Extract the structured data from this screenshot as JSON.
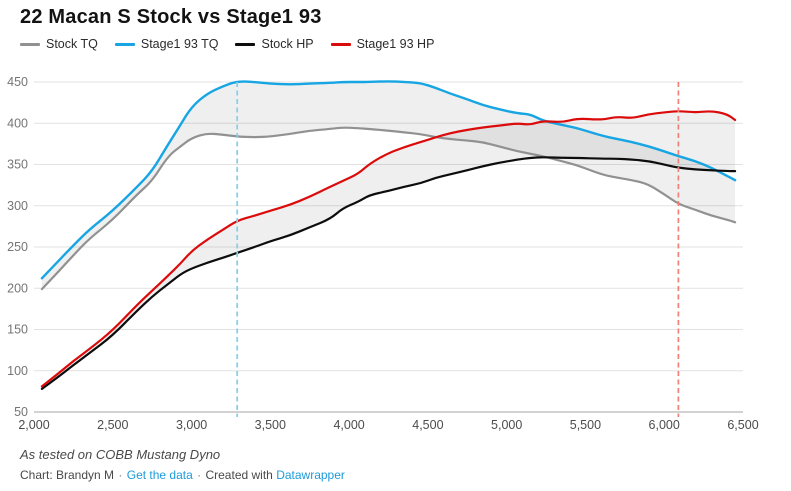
{
  "title": "22 Macan S Stock vs Stage1 93",
  "legend": [
    {
      "label": "Stock TQ",
      "color": "#919191"
    },
    {
      "label": "Stage1 93 TQ",
      "color": "#17a5e3"
    },
    {
      "label": "Stock HP",
      "color": "#0d0d0d"
    },
    {
      "label": "Stage1 93 HP",
      "color": "#dc0b0b"
    }
  ],
  "footer": {
    "note": "As tested on COBB Mustang Dyno",
    "byline": "Chart: Brandyn M",
    "dot": "·",
    "get_data_link": "Get the data",
    "created_with": "Created with",
    "datawrapper_link": "Datawrapper"
  },
  "colors": {
    "grid": "#e2e2e2",
    "baseline": "#a6a6a6",
    "y_tick_text": "#757575",
    "x_tick_text": "#4c4c4c",
    "band_fill": "rgba(40,40,40,0.075)"
  },
  "chart_data": {
    "type": "line",
    "title": "22 Macan S Stock vs Stage1 93",
    "xlabel": "",
    "ylabel": "",
    "xlim": [
      2000,
      6500
    ],
    "ylim": [
      50,
      450
    ],
    "grid": true,
    "legend_position": "top-left",
    "x_ticks": [
      {
        "v": 2000,
        "label": "2,000"
      },
      {
        "v": 2500,
        "label": "2,500"
      },
      {
        "v": 3000,
        "label": "3,000"
      },
      {
        "v": 3500,
        "label": "3,500"
      },
      {
        "v": 4000,
        "label": "4,000"
      },
      {
        "v": 4500,
        "label": "4,500"
      },
      {
        "v": 5000,
        "label": "5,000"
      },
      {
        "v": 5500,
        "label": "5,500"
      },
      {
        "v": 6000,
        "label": "6,000"
      },
      {
        "v": 6500,
        "label": "6,500"
      }
    ],
    "y_ticks": [
      50,
      100,
      150,
      200,
      250,
      300,
      350,
      400,
      450
    ],
    "x_rpm": [
      2050,
      2150,
      2250,
      2350,
      2500,
      2650,
      2750,
      2850,
      2930,
      3000,
      3100,
      3200,
      3290,
      3400,
      3500,
      3625,
      3750,
      3880,
      3960,
      4060,
      4130,
      4250,
      4350,
      4450,
      4550,
      4640,
      4750,
      4850,
      4950,
      5070,
      5150,
      5230,
      5350,
      5450,
      5600,
      5700,
      5800,
      5900,
      6000,
      6090,
      6200,
      6300,
      6400,
      6450
    ],
    "series": [
      {
        "name": "Stock TQ",
        "color": "#919191",
        "width": 2.2,
        "values": [
          199,
          219,
          240,
          260,
          283,
          313,
          330,
          360,
          372,
          382,
          388,
          386,
          384,
          383,
          384,
          387,
          391,
          393,
          395,
          394,
          393,
          391,
          389,
          387,
          383,
          381,
          379,
          377,
          372,
          366,
          363,
          360,
          354,
          349,
          338,
          334,
          331,
          326,
          314,
          302,
          295,
          288,
          283,
          280
        ]
      },
      {
        "name": "Stage1 93 TQ",
        "color": "#17a5e3",
        "width": 2.4,
        "values": [
          212,
          232,
          252,
          271,
          294,
          322,
          342,
          374,
          398,
          420,
          436,
          445,
          451,
          450,
          448,
          447,
          448,
          449,
          450,
          450,
          450,
          451,
          450,
          449,
          443,
          436,
          429,
          422,
          417,
          412,
          411,
          403,
          398,
          394,
          385,
          381,
          377,
          372,
          366,
          360,
          354,
          346,
          336,
          331
        ]
      },
      {
        "name": "Stock HP",
        "color": "#0d0d0d",
        "width": 2.2,
        "values": [
          78,
          92,
          107,
          121,
          143,
          172,
          190,
          205,
          217,
          224,
          231,
          237,
          243,
          250,
          257,
          264,
          274,
          284,
          297,
          305,
          313,
          318,
          323,
          327,
          334,
          338,
          343,
          348,
          352,
          356,
          358,
          359,
          358,
          358,
          357,
          357,
          356,
          354,
          350,
          346,
          344,
          343,
          342,
          342
        ]
      },
      {
        "name": "Stage1 93 HP",
        "color": "#dc0b0b",
        "width": 2.2,
        "values": [
          81,
          96,
          112,
          126,
          149,
          179,
          197,
          215,
          230,
          245,
          259,
          271,
          282,
          288,
          294,
          301,
          311,
          323,
          330,
          339,
          351,
          364,
          371,
          377,
          383,
          388,
          392,
          395,
          397,
          400,
          398,
          403,
          401,
          406,
          404,
          408,
          406,
          411,
          413,
          415,
          413,
          415,
          411,
          404
        ]
      }
    ],
    "bands": [
      {
        "upper": "Stage1 93 TQ",
        "lower": "Stock TQ"
      },
      {
        "upper": "Stage1 93 HP",
        "lower": "Stock HP"
      }
    ],
    "vlines": [
      {
        "x": 3290,
        "color": "#7ed0ef"
      },
      {
        "x": 6090,
        "color": "#f08177"
      }
    ]
  }
}
